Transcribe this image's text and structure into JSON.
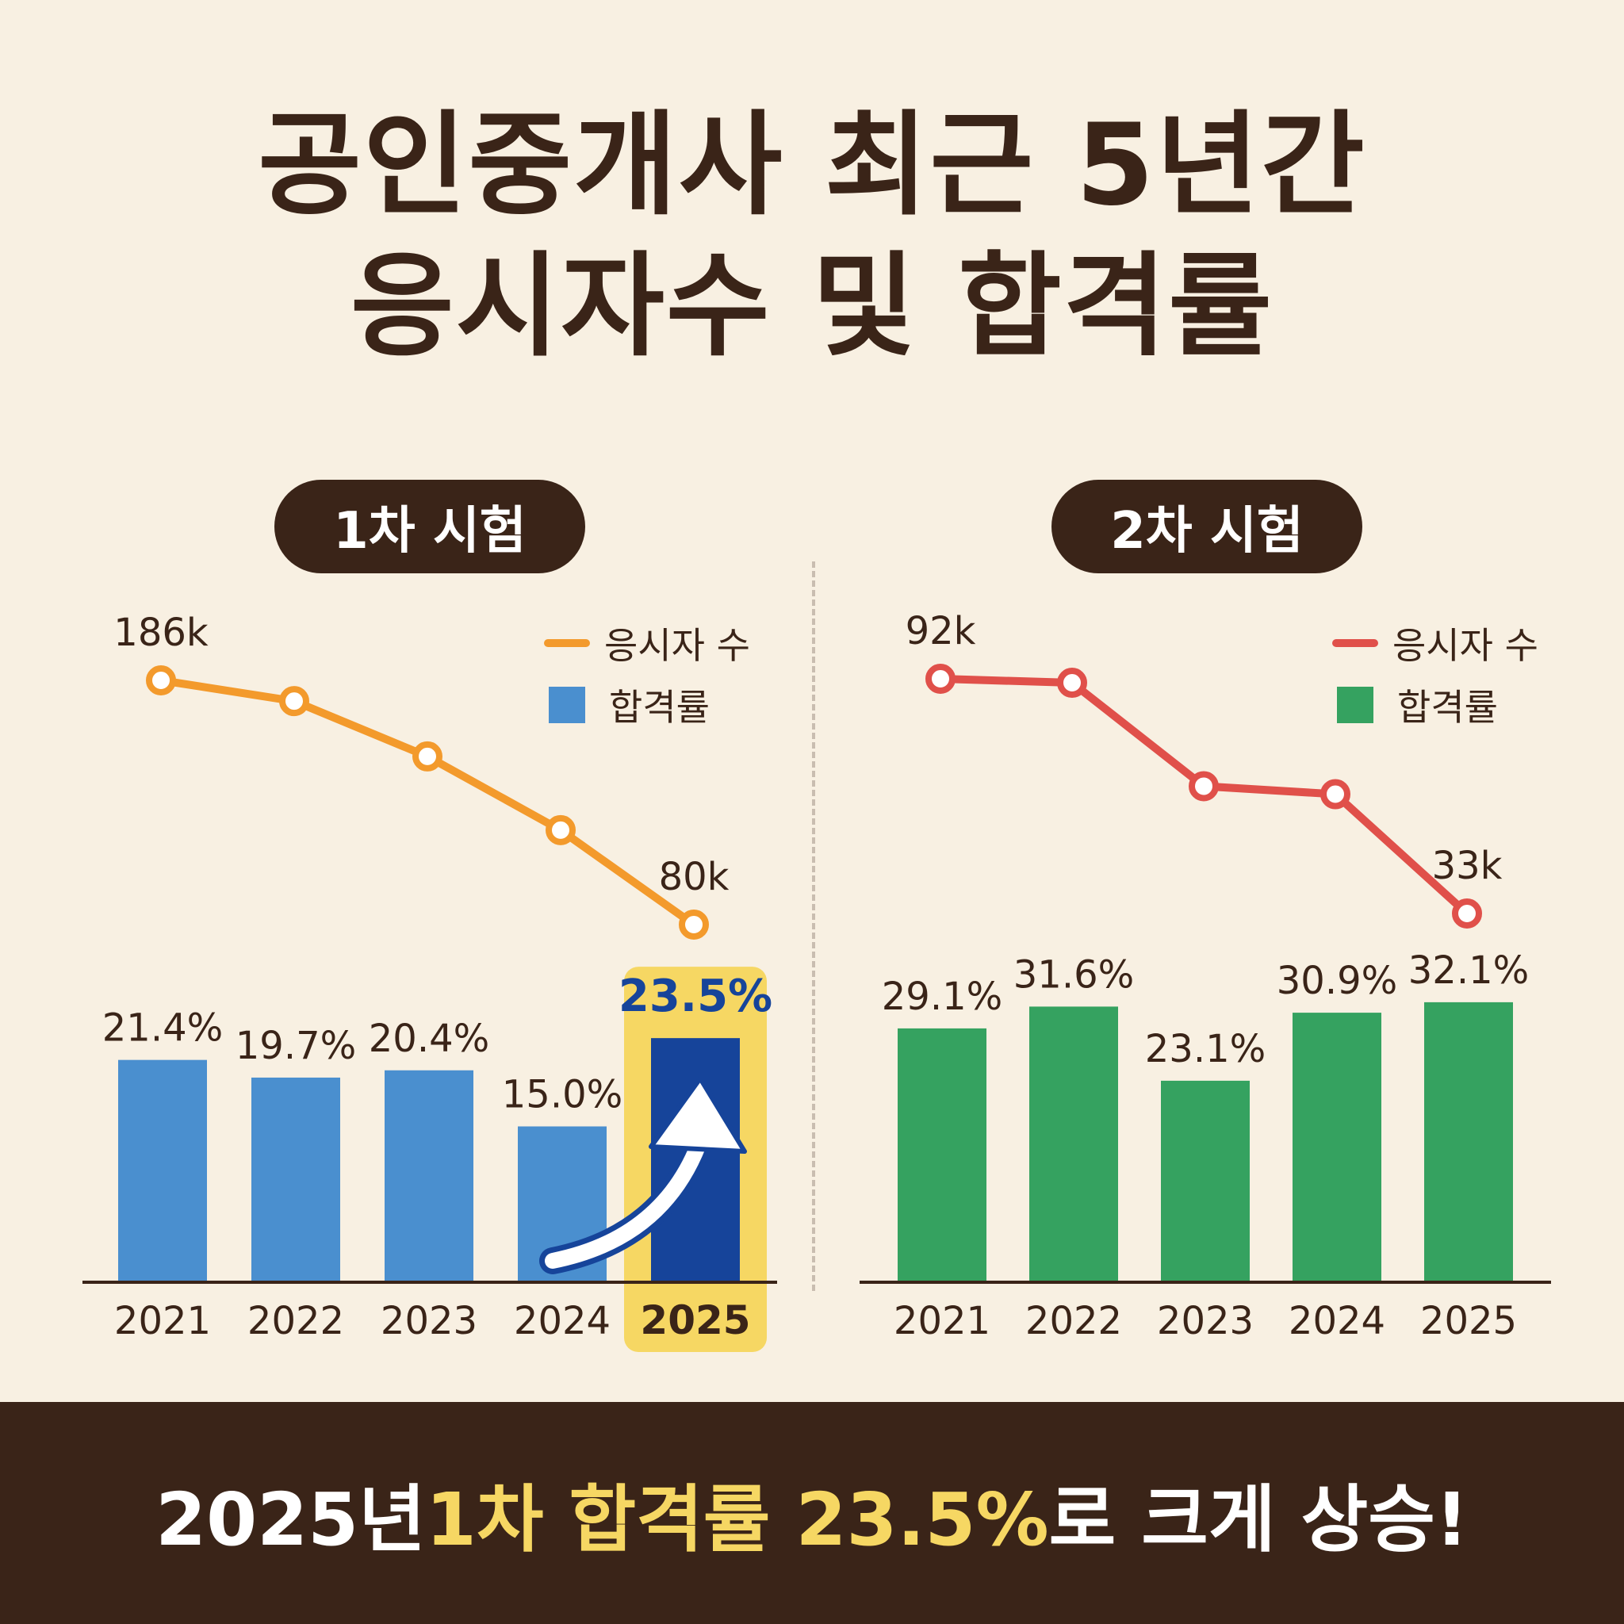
{
  "title": {
    "line1": "공인중개사 최근 5년간",
    "line2": "응시자수 및 합격률"
  },
  "colors": {
    "background": "#f8f0e2",
    "text_dark": "#3a2418",
    "first_line": "#f39a2c",
    "first_bar": "#4a8fcf",
    "first_bar_highlight": "#16449a",
    "highlight_yellow": "#f6d763",
    "second_line": "#e0504a",
    "second_bar": "#35a260"
  },
  "chart_data": [
    {
      "type": "bar",
      "panel_label": "1차 시험",
      "categories": [
        "2021",
        "2022",
        "2023",
        "2024",
        "2025"
      ],
      "series": [
        {
          "name": "응시자 수",
          "type": "line",
          "values": [
            186,
            177,
            153,
            121,
            80
          ],
          "unit": "k",
          "labeled_points": {
            "0": "186k",
            "4": "80k"
          }
        },
        {
          "name": "합격률",
          "type": "bar",
          "values": [
            21.4,
            19.7,
            20.4,
            15.0,
            23.5
          ],
          "labels": [
            "21.4%",
            "19.7%",
            "20.4%",
            "15.0%",
            "23.5%"
          ]
        }
      ],
      "highlight_category": "2025",
      "highlight_icon": "up-arrow-icon",
      "legend": [
        "응시자 수",
        "합격률"
      ],
      "legend_position": "top-right",
      "grid": false
    },
    {
      "type": "bar",
      "panel_label": "2차 시험",
      "categories": [
        "2021",
        "2022",
        "2023",
        "2024",
        "2025"
      ],
      "series": [
        {
          "name": "응시자 수",
          "type": "line",
          "values": [
            92,
            91,
            65,
            63,
            33
          ],
          "unit": "k",
          "labeled_points": {
            "0": "92k",
            "4": "33k"
          }
        },
        {
          "name": "합격률",
          "type": "bar",
          "values": [
            29.1,
            31.6,
            23.1,
            30.9,
            32.1
          ],
          "labels": [
            "29.1%",
            "31.6%",
            "23.1%",
            "30.9%",
            "32.1%"
          ]
        }
      ],
      "legend": [
        "응시자 수",
        "합격률"
      ],
      "legend_position": "top-right",
      "grid": false
    }
  ],
  "banner": {
    "part1": "2025년 ",
    "part2": "1차 합격률 23.5%",
    "part3": "로 크게 상승!"
  }
}
